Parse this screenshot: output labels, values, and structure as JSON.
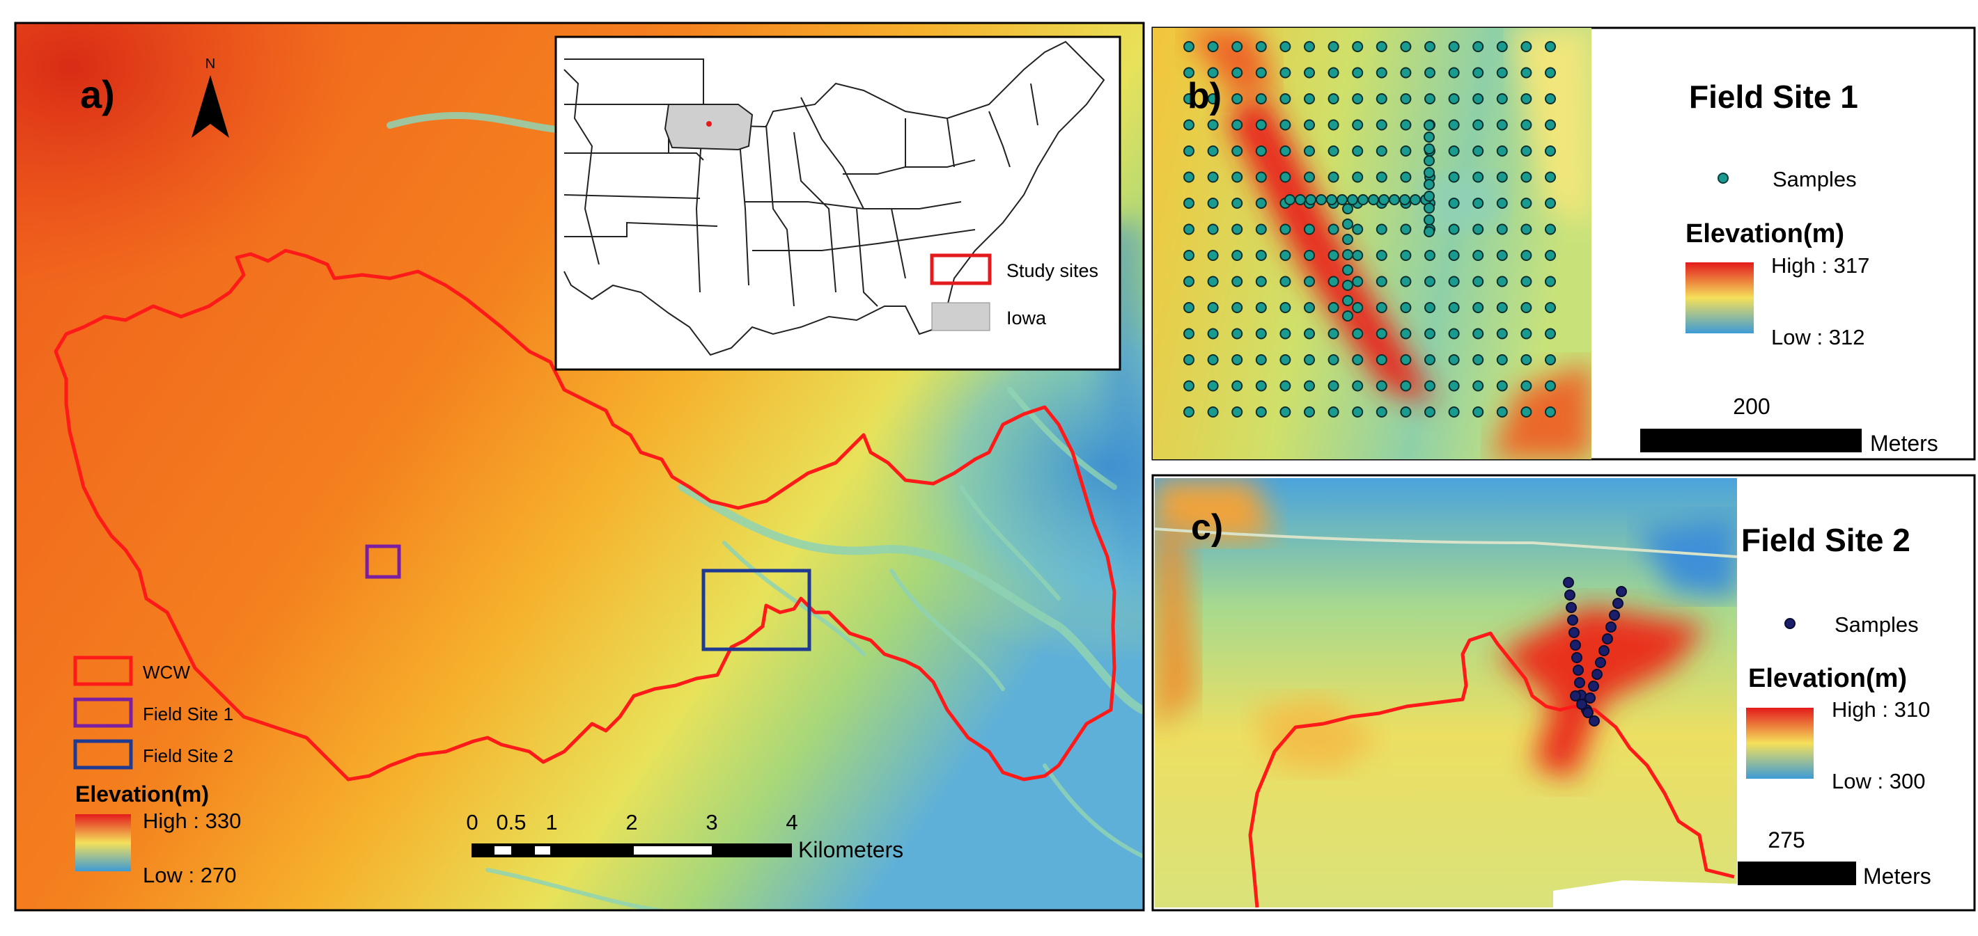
{
  "panel_a": {
    "label": "a)",
    "north": "N",
    "legend": {
      "items": [
        {
          "label": "WCW",
          "color": "#ff1a1a"
        },
        {
          "label": "Field Site 1",
          "color": "#7b1fa2"
        },
        {
          "label": "Field Site 2",
          "color": "#1f3a93"
        }
      ],
      "elev_title": "Elevation(m)",
      "high": "High : 330",
      "low": "Low : 270"
    },
    "scalebar": {
      "ticks": [
        "0",
        "0.5",
        "1",
        "2",
        "3",
        "4"
      ],
      "unit": "Kilometers"
    }
  },
  "inset": {
    "legend": [
      {
        "label": "Study sites",
        "color": "#e41a1c"
      },
      {
        "label": "Iowa",
        "color": "#cfcfcf"
      }
    ]
  },
  "panel_b": {
    "label": "b)",
    "title": "Field Site 1",
    "samples_label": "Samples",
    "sample_color": "#1a9b8f",
    "elev_title": "Elevation(m)",
    "high": "High : 317",
    "low": "Low : 312",
    "scale_value": "200",
    "scale_unit": "Meters"
  },
  "panel_c": {
    "label": "c)",
    "title": "Field Site 2",
    "samples_label": "Samples",
    "sample_color": "#1b1f6b",
    "elev_title": "Elevation(m)",
    "high": "High : 310",
    "low": "Low : 300",
    "scale_value": "275",
    "scale_unit": "Meters"
  },
  "colors": {
    "boundary": "#ff1a1a",
    "ramp_high": "#e31a1c",
    "ramp_mid": "#f4e05a",
    "ramp_low": "#3d9bd6"
  }
}
